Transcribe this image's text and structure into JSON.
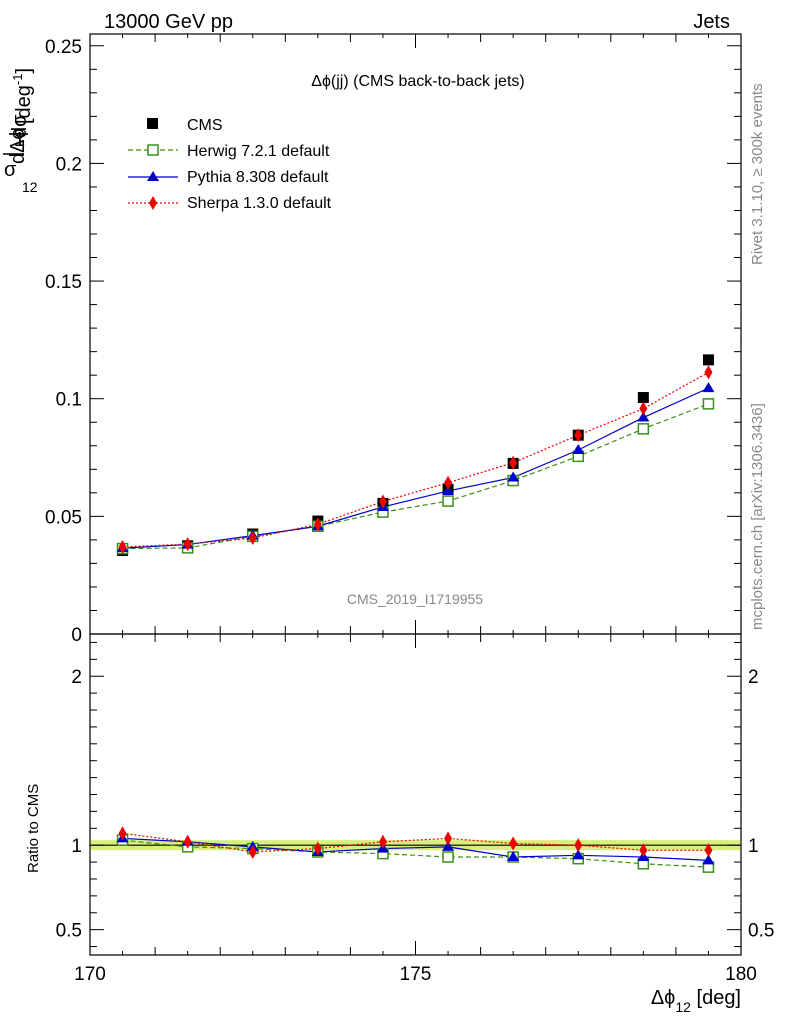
{
  "header": {
    "left_label": "13000 GeV pp",
    "right_label": "Jets"
  },
  "side_labels": {
    "rivet": "Rivet 3.1.10, ≥ 300k events",
    "mcplots": "mcplots.cern.ch [arXiv:1306.3436]"
  },
  "watermark": "CMS_2019_I1719955",
  "colors": {
    "cms": "#000000",
    "herwig": "#3a8f1a",
    "pythia": "#0000cc",
    "sherpa": "#ee0000",
    "band": "#d8f07a"
  },
  "chart_data": [
    {
      "type": "scatter",
      "title": "Δϕ(jj) (CMS back-to-back jets)",
      "ylabel_parts": {
        "frac_num": "1",
        "frac_den": "σ",
        "d_num": "dσ",
        "d_den": "dΔϕ",
        "d_den_sub": "12",
        "unit": "[deg",
        "unit_sup": "-1",
        "unit_end": "]"
      },
      "ylim": [
        0,
        0.255
      ],
      "yticks": [
        "0",
        "0.05",
        "0.1",
        "0.15",
        "0.2",
        "0.25"
      ],
      "x": [
        170.5,
        171.5,
        172.5,
        173.5,
        174.5,
        175.5,
        176.5,
        177.5,
        178.5,
        179.5
      ],
      "series": [
        {
          "name": "CMS",
          "values": [
            0.0355,
            0.0375,
            0.0425,
            0.048,
            0.0555,
            0.0615,
            0.0725,
            0.0845,
            0.1005,
            0.1165
          ]
        },
        {
          "name": "Herwig 7.2.1 default",
          "values": [
            0.0363,
            0.0366,
            0.0415,
            0.0458,
            0.0518,
            0.0565,
            0.0652,
            0.0755,
            0.0872,
            0.0978
          ]
        },
        {
          "name": "Pythia 8.308 default",
          "values": [
            0.0365,
            0.038,
            0.0418,
            0.0458,
            0.054,
            0.0608,
            0.0665,
            0.0782,
            0.092,
            0.1045
          ]
        },
        {
          "name": "Sherpa 1.3.0 default",
          "values": [
            0.037,
            0.0382,
            0.0408,
            0.0466,
            0.0563,
            0.0643,
            0.0728,
            0.0845,
            0.0958,
            0.1112
          ]
        }
      ],
      "legend_position": "top-left"
    },
    {
      "type": "scatter",
      "ylabel": "Ratio to CMS",
      "ylim": [
        0.35,
        2.25
      ],
      "yticks": [
        "0.5",
        "1",
        "2"
      ],
      "xlim": [
        170,
        180
      ],
      "xticks": [
        "170",
        "175",
        "180"
      ],
      "xlabel_parts": {
        "main": "Δϕ",
        "sub": "12",
        "unit": " [deg]"
      },
      "x": [
        170.5,
        171.5,
        172.5,
        173.5,
        174.5,
        175.5,
        176.5,
        177.5,
        178.5,
        179.5
      ],
      "series": [
        {
          "name": "Herwig 7.2.1 default",
          "values": [
            1.03,
            0.99,
            0.98,
            0.96,
            0.95,
            0.93,
            0.93,
            0.92,
            0.89,
            0.87
          ]
        },
        {
          "name": "Pythia 8.308 default",
          "values": [
            1.04,
            1.02,
            0.99,
            0.96,
            0.98,
            0.99,
            0.93,
            0.94,
            0.93,
            0.91
          ]
        },
        {
          "name": "Sherpa 1.3.0 default",
          "values": [
            1.07,
            1.02,
            0.96,
            0.98,
            1.02,
            1.04,
            1.01,
            1.0,
            0.97,
            0.97
          ]
        }
      ]
    }
  ]
}
